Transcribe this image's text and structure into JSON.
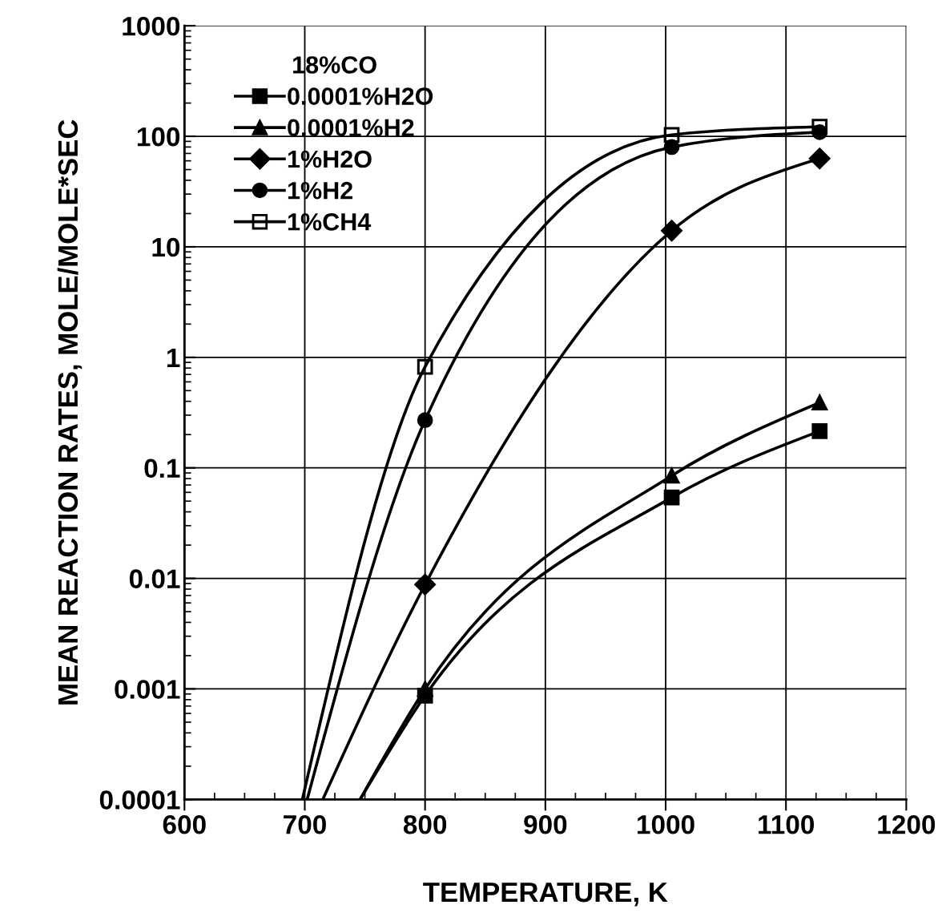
{
  "chart_data": {
    "type": "line",
    "xlabel": "TEMPERATURE, K",
    "ylabel": "MEAN REACTION RATES, MOLE/MOLE*SEC",
    "legend_title": "18%CO",
    "log": "y",
    "grid": true,
    "legend": "top left",
    "xlim": [
      600,
      1200
    ],
    "xticks": [
      600,
      700,
      800,
      900,
      1000,
      1100,
      1200
    ],
    "ylim": [
      0.0001,
      1000
    ],
    "yticks": [
      {
        "value": 0.0001,
        "label": "0.0001"
      },
      {
        "value": 0.001,
        "label": "0.001"
      },
      {
        "value": 0.01,
        "label": "0.01"
      },
      {
        "value": 0.1,
        "label": "0.1"
      },
      {
        "value": 1,
        "label": "1"
      },
      {
        "value": 10,
        "label": "10"
      },
      {
        "value": 100,
        "label": "100"
      },
      {
        "value": 1000,
        "label": "1000"
      }
    ],
    "series": [
      {
        "name": "1%CH4",
        "color": "#000000",
        "marker": "square",
        "x": [
          698,
          800,
          1005,
          1128
        ],
        "values": [
          0.0001,
          0.82,
          103,
          122
        ]
      },
      {
        "name": "1%H2",
        "color": "#000000",
        "marker": "circle",
        "x": [
          702,
          800,
          1005,
          1128
        ],
        "values": [
          0.0001,
          0.27,
          80,
          109
        ]
      },
      {
        "name": "1%H2O",
        "color": "#000000",
        "marker": "diamond",
        "x": [
          715,
          800,
          1005,
          1128
        ],
        "values": [
          0.0001,
          0.0088,
          14,
          63
        ]
      },
      {
        "name": "0.0001%H2",
        "color": "#000000",
        "marker": "triangle",
        "x": [
          746,
          800,
          1005,
          1128
        ],
        "values": [
          0.0001,
          0.001,
          0.085,
          0.39
        ]
      },
      {
        "name": "0.0001%H2O",
        "color": "#000000",
        "marker": "square",
        "x": [
          746,
          800,
          1005,
          1128
        ],
        "values": [
          0.0001,
          0.00087,
          0.054,
          0.215
        ]
      }
    ]
  }
}
